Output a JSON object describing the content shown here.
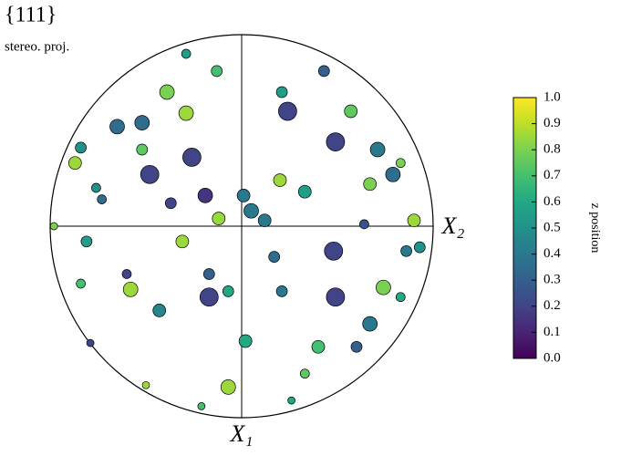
{
  "chart_data": {
    "type": "scatter",
    "title": "{111}",
    "subtitle": "stereo. proj.",
    "xlabel": "X₂",
    "ylabel": "X₁",
    "colorbar_label": "z position",
    "colormap": "viridis",
    "xlim": [
      -1,
      1
    ],
    "ylim": [
      -1,
      1
    ],
    "clim": [
      0,
      1
    ],
    "cticks": [
      {
        "value": 0,
        "label": "0.0"
      },
      0.1,
      0.2,
      0.3,
      0.4,
      0.5,
      0.6,
      0.7,
      0.8,
      0.9,
      {
        "value": 1,
        "label": "1.0"
      }
    ],
    "x": [
      -0.48,
      -0.26,
      0.24,
      0.49,
      -0.17,
      0.49,
      0.48,
      0.79,
      -0.52,
      -0.65,
      -0.39,
      0.9,
      -0.07,
      -0.87,
      -0.58,
      0.74,
      0.67,
      0.2,
      -0.12,
      -0.31,
      0.05,
      0.01,
      0.12,
      0.67,
      0.71,
      0.33,
      -0.13,
      0.43,
      0.57,
      -0.84,
      -0.98,
      -0.84,
      -0.79,
      -0.5,
      -0.21,
      0.33,
      0.6,
      0.83,
      0.86,
      0.93,
      0.83,
      -0.81,
      -0.73,
      -0.29,
      0.26,
      0.02,
      0.17,
      -0.43,
      0.4,
      -0.29,
      -0.19,
      -0.37,
      0.21,
      -0.6,
      -0.07,
      -0.17,
      0.64,
      -0.52,
      -0.76,
      0.21
    ],
    "y": [
      0.27,
      0.36,
      0.6,
      0.44,
      -0.37,
      -0.37,
      -0.13,
      0.27,
      0.54,
      0.52,
      0.7,
      0.03,
      -0.84,
      0.33,
      -0.33,
      -0.32,
      0.22,
      0.24,
      0.04,
      -0.08,
      0.08,
      0.16,
      0.03,
      -0.51,
      0.4,
      0.18,
      0.81,
      0.81,
      0.6,
      0.41,
      0.0,
      -0.3,
      -0.61,
      -0.83,
      -0.94,
      -0.77,
      -0.63,
      -0.37,
      -0.13,
      -0.11,
      0.33,
      -0.08,
      0.14,
      0.9,
      -0.91,
      -0.6,
      -0.16,
      -0.44,
      -0.63,
      0.59,
      0.16,
      0.12,
      0.7,
      -0.25,
      -0.34,
      -0.25,
      0.01,
      0.4,
      0.2,
      -0.34
    ],
    "z": [
      0.2,
      0.2,
      0.2,
      0.2,
      0.2,
      0.2,
      0.2,
      0.35,
      0.35,
      0.35,
      0.8,
      0.85,
      0.85,
      0.85,
      0.85,
      0.8,
      0.8,
      0.85,
      0.85,
      0.85,
      0.4,
      0.4,
      0.4,
      0.4,
      0.4,
      0.55,
      0.7,
      0.3,
      0.75,
      0.5,
      0.8,
      0.7,
      0.2,
      0.85,
      0.7,
      0.75,
      0.3,
      0.6,
      0.4,
      0.5,
      0.8,
      0.55,
      0.35,
      0.55,
      0.6,
      0.6,
      0.35,
      0.45,
      0.7,
      0.85,
      0.15,
      0.2,
      0.55,
      0.2,
      0.6,
      0.3,
      0.25,
      0.75,
      0.5,
      0.4
    ],
    "sizes": [
      10,
      10,
      10,
      10,
      10,
      10,
      10,
      8,
      8,
      8,
      8,
      7,
      8,
      7,
      8,
      8,
      7,
      7,
      7,
      7,
      8,
      7,
      7,
      8,
      8,
      7,
      6,
      6,
      7,
      6,
      4,
      5,
      4,
      4,
      4,
      5,
      6,
      5,
      6,
      6,
      5,
      6,
      5,
      5,
      4,
      7,
      6,
      7,
      7,
      8,
      8,
      6,
      6,
      5,
      6,
      6,
      5,
      6,
      5,
      6
    ]
  }
}
